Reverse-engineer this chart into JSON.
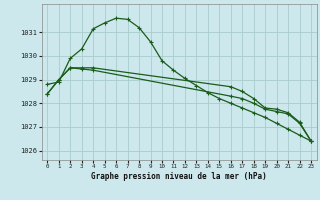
{
  "title": "Graphe pression niveau de la mer (hPa)",
  "background_color": "#cce8ec",
  "grid_color": "#aacccc",
  "line_color": "#1a5c1a",
  "xlim": [
    -0.5,
    23.5
  ],
  "ylim": [
    1025.6,
    1032.2
  ],
  "yticks": [
    1026,
    1027,
    1028,
    1029,
    1030,
    1031
  ],
  "xticks": [
    0,
    1,
    2,
    3,
    4,
    5,
    6,
    7,
    8,
    9,
    10,
    11,
    12,
    13,
    14,
    15,
    16,
    17,
    18,
    19,
    20,
    21,
    22,
    23
  ],
  "series1_x": [
    0,
    1,
    2,
    3,
    4,
    5,
    6,
    7,
    8,
    9,
    10,
    11,
    12,
    13,
    14,
    15,
    16,
    17,
    18,
    19,
    20,
    21,
    22,
    23
  ],
  "series1_y": [
    1028.8,
    1028.9,
    1029.9,
    1030.3,
    1031.15,
    1031.4,
    1031.6,
    1031.55,
    1031.2,
    1030.6,
    1029.8,
    1029.4,
    1029.05,
    1028.75,
    1028.45,
    1028.2,
    1028.0,
    1027.8,
    1027.6,
    1027.4,
    1027.15,
    1026.9,
    1026.65,
    1026.4
  ],
  "series2_x": [
    0,
    1,
    2,
    3,
    4,
    16,
    17,
    18,
    19,
    20,
    21,
    22,
    23
  ],
  "series2_y": [
    1028.4,
    1029.0,
    1029.5,
    1029.5,
    1029.5,
    1028.7,
    1028.5,
    1028.2,
    1027.8,
    1027.75,
    1027.6,
    1027.2,
    1026.4
  ],
  "series3_x": [
    0,
    1,
    2,
    3,
    4,
    16,
    17,
    18,
    19,
    20,
    21,
    22,
    23
  ],
  "series3_y": [
    1028.4,
    1029.0,
    1029.5,
    1029.45,
    1029.4,
    1028.3,
    1028.2,
    1028.0,
    1027.75,
    1027.65,
    1027.55,
    1027.15,
    1026.4
  ]
}
